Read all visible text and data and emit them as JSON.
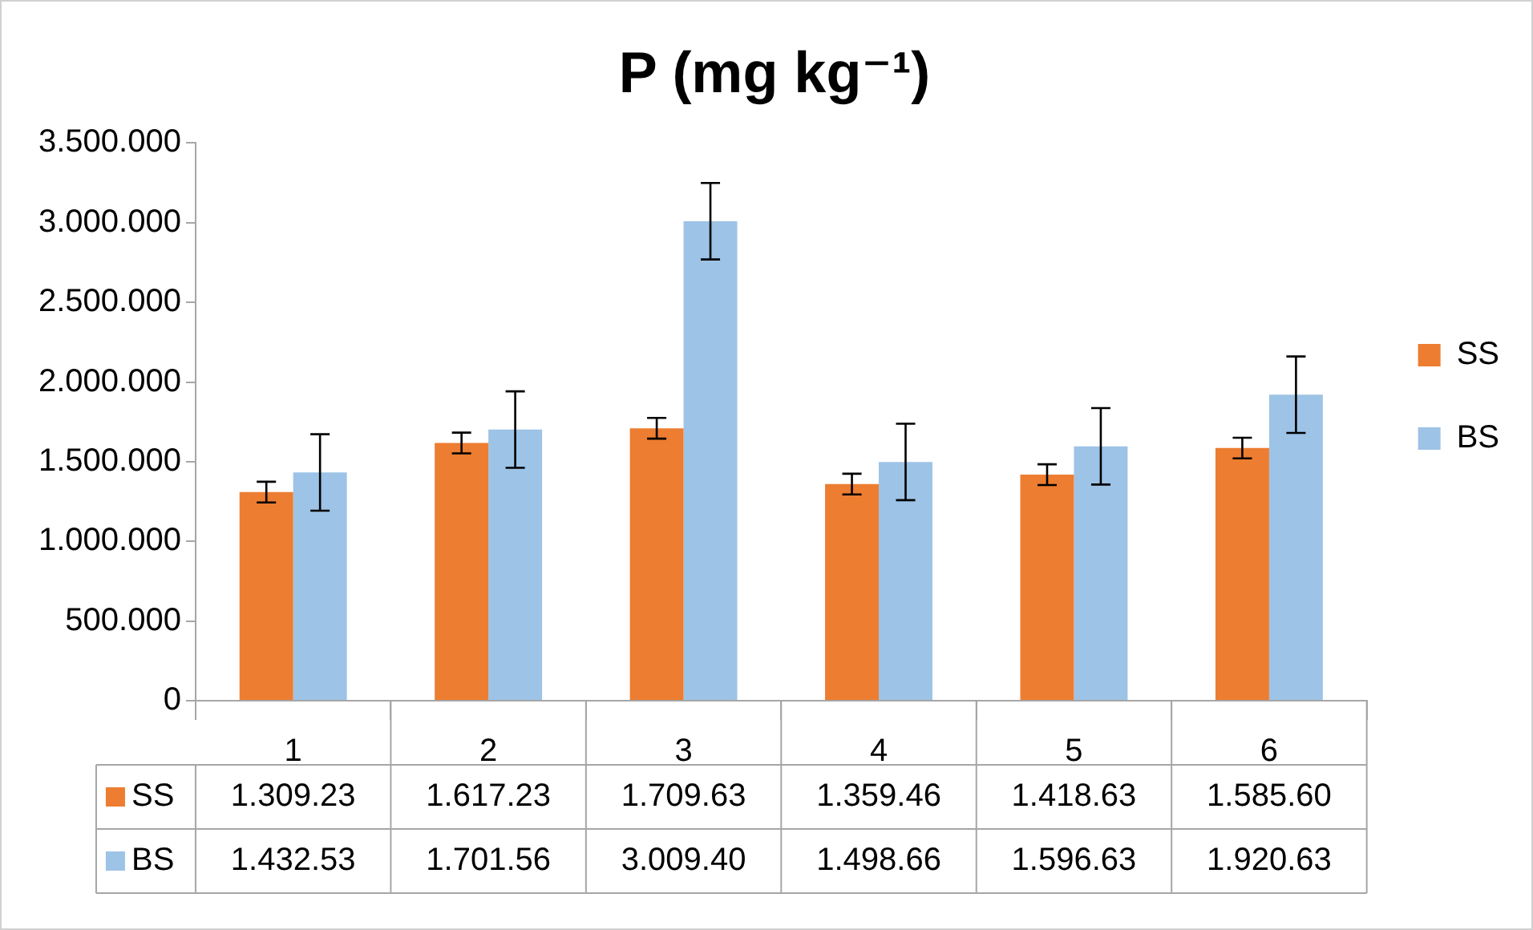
{
  "chart_data": {
    "type": "bar",
    "title": "P (mg kg⁻¹)",
    "categories": [
      "1",
      "2",
      "3",
      "4",
      "5",
      "6"
    ],
    "series": [
      {
        "name": "SS",
        "color": "#ed7d31",
        "values": [
          1309230,
          1617230,
          1709630,
          1359460,
          1418630,
          1585600
        ],
        "errors": [
          65000,
          65000,
          65000,
          65000,
          65000,
          65000
        ],
        "value_labels": [
          "1.309.23",
          "1.617.23",
          "1.709.63",
          "1.359.46",
          "1.418.63",
          "1.585.60"
        ]
      },
      {
        "name": "BS",
        "color": "#9dc3e6",
        "values": [
          1432530,
          1701560,
          3009400,
          1498660,
          1596630,
          1920630
        ],
        "errors": [
          240000,
          240000,
          240000,
          240000,
          240000,
          240000
        ],
        "value_labels": [
          "1.432.53",
          "1.701.56",
          "3.009.40",
          "1.498.66",
          "1.596.63",
          "1.920.63"
        ]
      }
    ],
    "ylim": [
      0,
      3500000
    ],
    "yticks": [
      0,
      {
        "value": 500000,
        "label": "500.000"
      },
      {
        "value": 1000000,
        "label": "1.000.000"
      },
      {
        "value": 1500000,
        "label": "1.500.000"
      },
      {
        "value": 2000000,
        "label": "2.000.000"
      },
      {
        "value": 2500000,
        "label": "2.500.000"
      },
      {
        "value": 3000000,
        "label": "3.000.000"
      },
      {
        "value": 3500000,
        "label": "3.500.000"
      }
    ],
    "grid": false,
    "legend": "right"
  }
}
